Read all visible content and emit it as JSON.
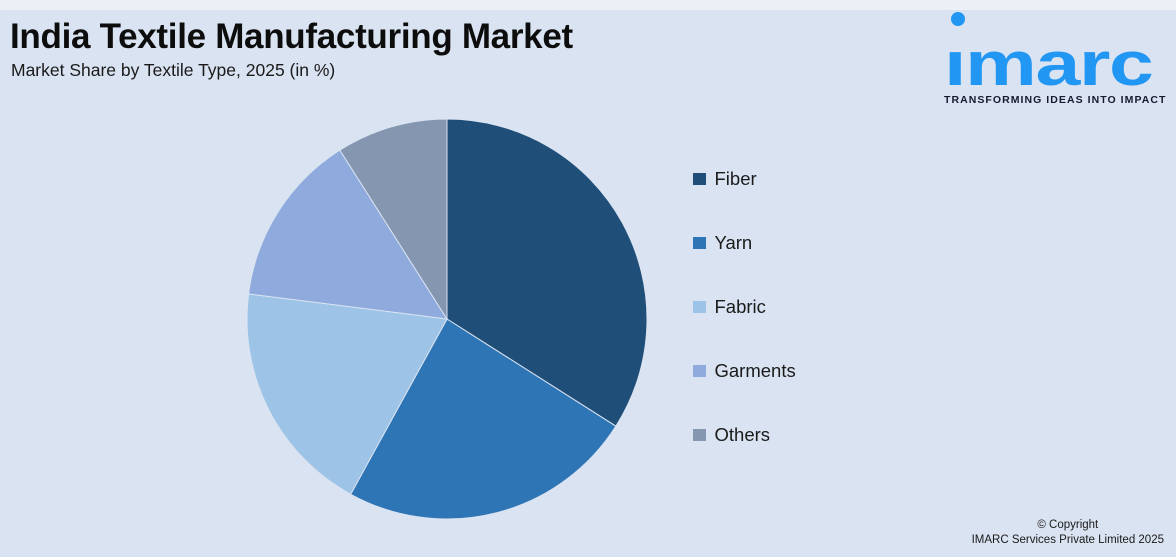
{
  "background_color": "#dae3f1",
  "header": {
    "title": "India Textile Manufacturing Market",
    "subtitle": "Market Share by Textile Type, 2025 (in %)"
  },
  "logo": {
    "brand": "imarc",
    "brand_display": "ımarc",
    "tagline": "TRANSFORMING IDEAS INTO IMPACT",
    "brand_color": "#2196f3",
    "tagline_color": "#171a2e"
  },
  "chart_data": {
    "type": "pie",
    "title": "India Textile Manufacturing Market",
    "subtitle": "Market Share by Textile Type, 2025 (in %)",
    "unit": "%",
    "categories": [
      "Fiber",
      "Yarn",
      "Fabric",
      "Garments",
      "Others"
    ],
    "values": [
      34,
      24,
      19,
      14,
      9
    ],
    "colors": [
      "#1f4e79",
      "#2e75b6",
      "#9dc3e6",
      "#8faadc",
      "#8496b0"
    ],
    "start_angle_deg": 0,
    "direction": "clockwise",
    "legend_position": "right",
    "data_labels": false
  },
  "footer": {
    "line1": "© Copyright",
    "line2": "IMARC Services Private Limited 2025"
  }
}
